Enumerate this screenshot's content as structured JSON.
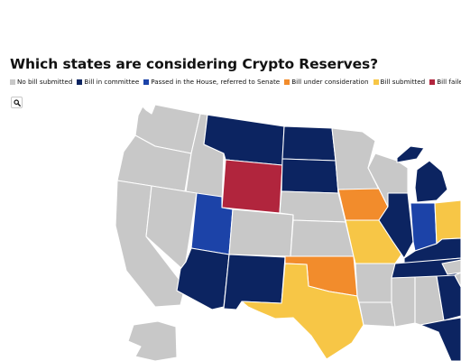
{
  "title": "Which states are considering Crypto Reserves?",
  "legend": [
    {
      "label": "No bill submitted",
      "color": "#c8c8c8"
    },
    {
      "label": "Bill in committee",
      "color": "#0c2461"
    },
    {
      "label": "Passed in the House, referred to Senate",
      "color": "#1c43a8"
    },
    {
      "label": "Bill under consideration",
      "color": "#f28c2c"
    },
    {
      "label": "Bill submitted",
      "color": "#f7c646"
    },
    {
      "label": "Bill failed",
      "color": "#b1253d"
    }
  ],
  "controls": {
    "zoom_icon": "search-icon"
  },
  "map": {
    "states": [
      {
        "name": "Washington",
        "status": "No bill submitted"
      },
      {
        "name": "Oregon",
        "status": "No bill submitted"
      },
      {
        "name": "California",
        "status": "No bill submitted"
      },
      {
        "name": "Idaho",
        "status": "No bill submitted"
      },
      {
        "name": "Nevada",
        "status": "No bill submitted"
      },
      {
        "name": "Montana",
        "status": "Bill in committee"
      },
      {
        "name": "Wyoming",
        "status": "Bill failed"
      },
      {
        "name": "Utah",
        "status": "Passed in the House, referred to Senate"
      },
      {
        "name": "Arizona",
        "status": "Bill in committee"
      },
      {
        "name": "Colorado",
        "status": "No bill submitted"
      },
      {
        "name": "New Mexico",
        "status": "Bill in committee"
      },
      {
        "name": "North Dakota",
        "status": "Bill in committee"
      },
      {
        "name": "South Dakota",
        "status": "Bill in committee"
      },
      {
        "name": "Nebraska",
        "status": "No bill submitted"
      },
      {
        "name": "Kansas",
        "status": "No bill submitted"
      },
      {
        "name": "Oklahoma",
        "status": "Bill under consideration"
      },
      {
        "name": "Texas",
        "status": "Bill submitted"
      },
      {
        "name": "Minnesota",
        "status": "No bill submitted"
      },
      {
        "name": "Iowa",
        "status": "Bill under consideration"
      },
      {
        "name": "Missouri",
        "status": "Bill submitted"
      },
      {
        "name": "Arkansas",
        "status": "No bill submitted"
      },
      {
        "name": "Louisiana",
        "status": "No bill submitted"
      },
      {
        "name": "Wisconsin",
        "status": "No bill submitted"
      },
      {
        "name": "Illinois",
        "status": "Bill in committee"
      },
      {
        "name": "Michigan",
        "status": "Bill in committee"
      },
      {
        "name": "Indiana",
        "status": "Passed in the House, referred to Senate"
      },
      {
        "name": "Ohio",
        "status": "Bill submitted"
      },
      {
        "name": "Kentucky",
        "status": "Bill in committee"
      },
      {
        "name": "Tennessee",
        "status": "Bill in committee"
      },
      {
        "name": "Mississippi",
        "status": "No bill submitted"
      },
      {
        "name": "Alabama",
        "status": "No bill submitted"
      },
      {
        "name": "Georgia",
        "status": "Bill in committee"
      },
      {
        "name": "Florida",
        "status": "Bill in committee"
      },
      {
        "name": "South Carolina",
        "status": "No bill submitted"
      },
      {
        "name": "North Carolina",
        "status": "No bill submitted"
      },
      {
        "name": "Alaska",
        "status": "No bill submitted"
      }
    ]
  }
}
